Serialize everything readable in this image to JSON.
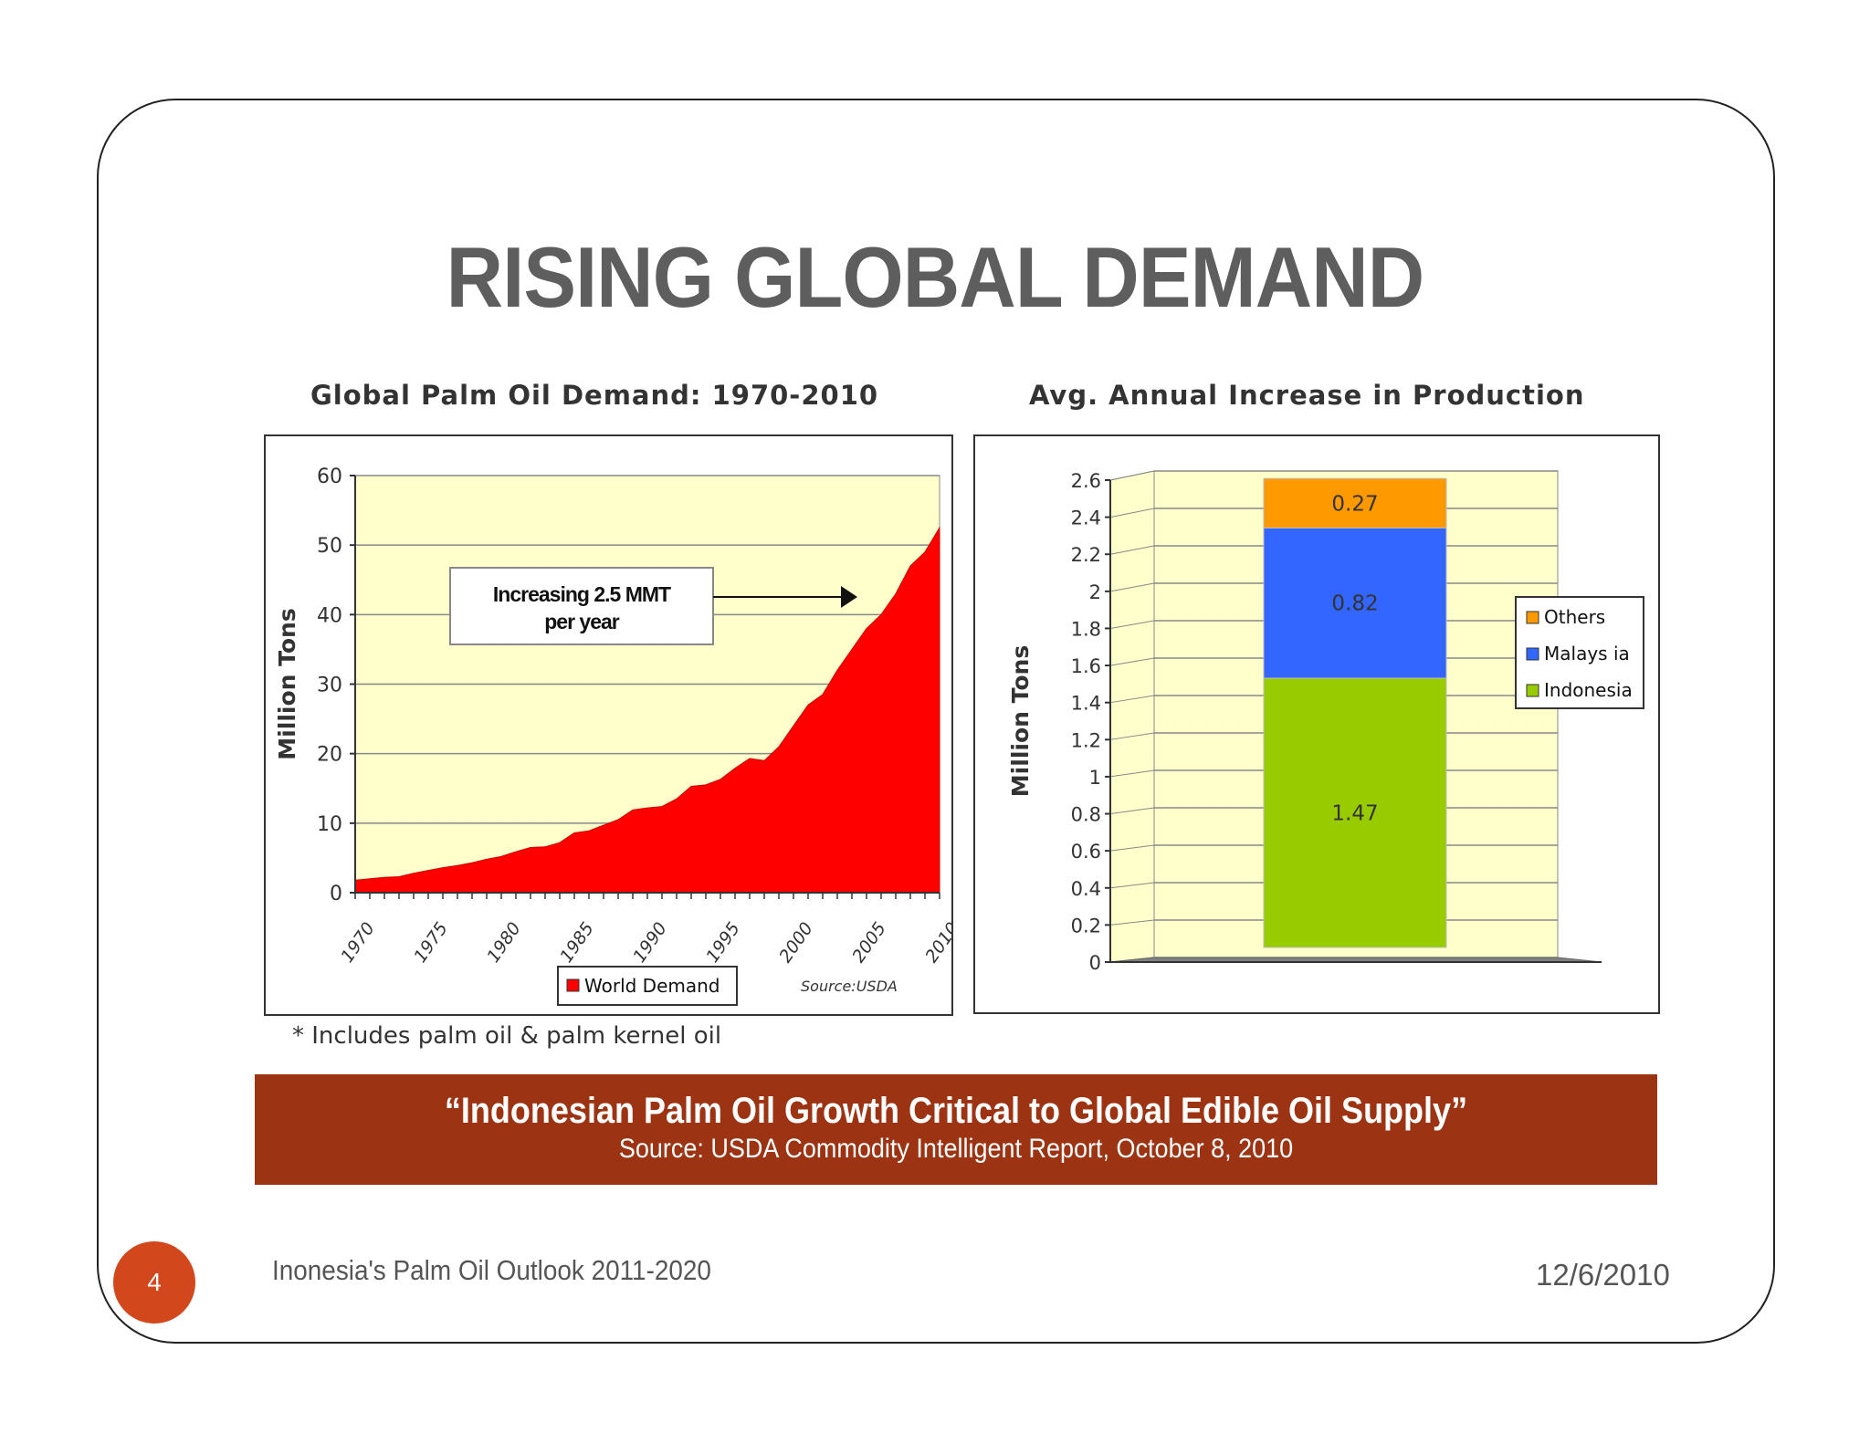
{
  "slide": {
    "title": "RISING GLOBAL DEMAND",
    "footnote": "* Includes palm oil & palm kernel oil",
    "banner_quote": "“Indonesian Palm Oil Growth Critical to Global Edible Oil Supply”",
    "banner_source": "Source: USDA Commodity Intelligent Report, October 8, 2010",
    "page_number": "4",
    "footer_left": "Inonesia's Palm Oil Outlook 2011-2020",
    "footer_right": "12/6/2010"
  },
  "colors": {
    "title": "#5e5e5e",
    "banner": "#9c3413",
    "page_badge": "#d2471b",
    "plot_bg": "#ffffcc",
    "demand": "#ff0000",
    "others": "#ff9900",
    "malaysia": "#3366ff",
    "indonesia": "#99cc00",
    "floor": "#808080"
  },
  "chart_data": [
    {
      "type": "area",
      "title": "Global Palm Oil Demand: 1970-2010",
      "ylabel": "Million Tons",
      "xlabel": "",
      "ylim": [
        0,
        60
      ],
      "yticks": [
        "0",
        "10",
        "20",
        "30",
        "40",
        "50",
        "60"
      ],
      "xtick_labels": [
        "1970",
        "1975",
        "1980",
        "1985",
        "1990",
        "1995",
        "2000",
        "2005",
        "2010"
      ],
      "x": [
        1970,
        1971,
        1972,
        1973,
        1974,
        1975,
        1976,
        1977,
        1978,
        1979,
        1980,
        1981,
        1982,
        1983,
        1984,
        1985,
        1986,
        1987,
        1988,
        1989,
        1990,
        1991,
        1992,
        1993,
        1994,
        1995,
        1996,
        1997,
        1998,
        1999,
        2000,
        2001,
        2002,
        2003,
        2004,
        2005,
        2006,
        2007,
        2008,
        2009,
        2010
      ],
      "series": [
        {
          "name": "World Demand",
          "values": [
            1.8,
            2.0,
            2.2,
            2.3,
            2.8,
            3.2,
            3.6,
            3.9,
            4.3,
            4.8,
            5.2,
            5.9,
            6.5,
            6.6,
            7.2,
            8.6,
            8.9,
            9.7,
            10.5,
            11.9,
            12.2,
            12.4,
            13.5,
            15.3,
            15.5,
            16.3,
            17.9,
            19.3,
            19.0,
            21.0,
            24.0,
            27.0,
            28.5,
            32.0,
            35.0,
            38.0,
            40.0,
            43.0,
            47.0,
            49.0,
            52.5
          ]
        }
      ],
      "legend": "bottom",
      "annotation": "Increasing 2.5 MMT per year",
      "source_note": "Source:USDA",
      "grid": true
    },
    {
      "type": "bar",
      "stacked": true,
      "title": "Avg. Annual Increase in Production",
      "ylabel": "Million Tons",
      "ylim": [
        0,
        2.6
      ],
      "yticks": [
        "0",
        "0.2",
        "0.4",
        "0.6",
        "0.8",
        "1",
        "1.2",
        "1.4",
        "1.6",
        "1.8",
        "2",
        "2.2",
        "2.4",
        "2.6"
      ],
      "categories": [
        ""
      ],
      "series": [
        {
          "name": "Indonesia",
          "values": [
            1.47
          ],
          "label": "1.47"
        },
        {
          "name": "Malays ia",
          "values": [
            0.82
          ],
          "label": "0.82"
        },
        {
          "name": "Others",
          "values": [
            0.27
          ],
          "label": "0.27"
        }
      ],
      "legend_entries": [
        "Others",
        "Malays ia",
        "Indonesia"
      ],
      "legend": "right",
      "grid": true
    }
  ]
}
